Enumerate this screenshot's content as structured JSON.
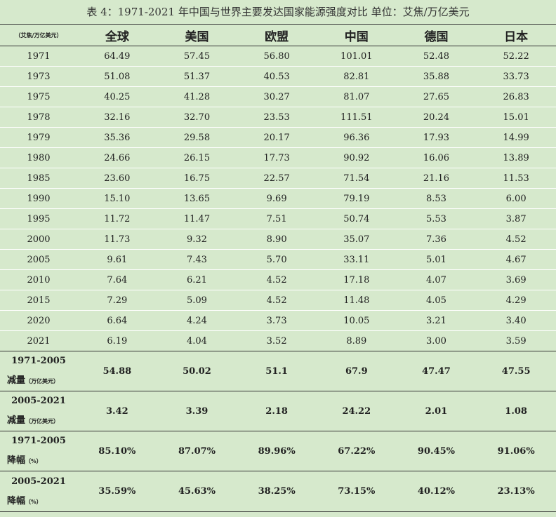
{
  "caption": "表 4：1971-2021 年中国与世界主要发达国家能源强度对比 单位：艾焦/万亿美元",
  "header": {
    "unit": "（艾焦/万亿美元）",
    "columns": [
      "全球",
      "美国",
      "欧盟",
      "中国",
      "德国",
      "日本"
    ]
  },
  "rows": [
    {
      "year": "1971",
      "values": [
        "64.49",
        "57.45",
        "56.80",
        "101.01",
        "52.48",
        "52.22"
      ]
    },
    {
      "year": "1973",
      "values": [
        "51.08",
        "51.37",
        "40.53",
        "82.81",
        "35.88",
        "33.73"
      ]
    },
    {
      "year": "1975",
      "values": [
        "40.25",
        "41.28",
        "30.27",
        "81.07",
        "27.65",
        "26.83"
      ]
    },
    {
      "year": "1978",
      "values": [
        "32.16",
        "32.70",
        "23.53",
        "111.51",
        "20.24",
        "15.01"
      ]
    },
    {
      "year": "1979",
      "values": [
        "35.36",
        "29.58",
        "20.17",
        "96.36",
        "17.93",
        "14.99"
      ]
    },
    {
      "year": "1980",
      "values": [
        "24.66",
        "26.15",
        "17.73",
        "90.92",
        "16.06",
        "13.89"
      ]
    },
    {
      "year": "1985",
      "values": [
        "23.60",
        "16.75",
        "22.57",
        "71.54",
        "21.16",
        "11.53"
      ]
    },
    {
      "year": "1990",
      "values": [
        "15.10",
        "13.65",
        "9.69",
        "79.19",
        "8.53",
        "6.00"
      ]
    },
    {
      "year": "1995",
      "values": [
        "11.72",
        "11.47",
        "7.51",
        "50.74",
        "5.53",
        "3.87"
      ]
    },
    {
      "year": "2000",
      "values": [
        "11.73",
        "9.32",
        "8.90",
        "35.07",
        "7.36",
        "4.52"
      ]
    },
    {
      "year": "2005",
      "values": [
        "9.61",
        "7.43",
        "5.70",
        "33.11",
        "5.01",
        "4.67"
      ]
    },
    {
      "year": "2010",
      "values": [
        "7.64",
        "6.21",
        "4.52",
        "17.18",
        "4.07",
        "3.69"
      ]
    },
    {
      "year": "2015",
      "values": [
        "7.29",
        "5.09",
        "4.52",
        "11.48",
        "4.05",
        "4.29"
      ]
    },
    {
      "year": "2020",
      "values": [
        "6.64",
        "4.24",
        "3.73",
        "10.05",
        "3.21",
        "3.40"
      ]
    },
    {
      "year": "2021",
      "values": [
        "6.19",
        "4.04",
        "3.52",
        "8.89",
        "3.00",
        "3.59"
      ]
    }
  ],
  "summary": [
    {
      "line1": "1971-2005",
      "line2": "减量",
      "unit": "（万亿美元）",
      "values": [
        "54.88",
        "50.02",
        "51.1",
        "67.9",
        "47.47",
        "47.55"
      ]
    },
    {
      "line1": "2005-2021",
      "line2": "减量",
      "unit": "（万亿美元）",
      "values": [
        "3.42",
        "3.39",
        "2.18",
        "24.22",
        "2.01",
        "1.08"
      ]
    },
    {
      "line1": "1971-2005",
      "line2": "降幅",
      "unit": "（%）",
      "values": [
        "85.10%",
        "87.07%",
        "89.96%",
        "67.22%",
        "90.45%",
        "91.06%"
      ]
    },
    {
      "line1": "2005-2021",
      "line2": "降幅",
      "unit": "（%）",
      "values": [
        "35.59%",
        "45.63%",
        "38.25%",
        "73.15%",
        "40.12%",
        "23.13%"
      ]
    }
  ]
}
